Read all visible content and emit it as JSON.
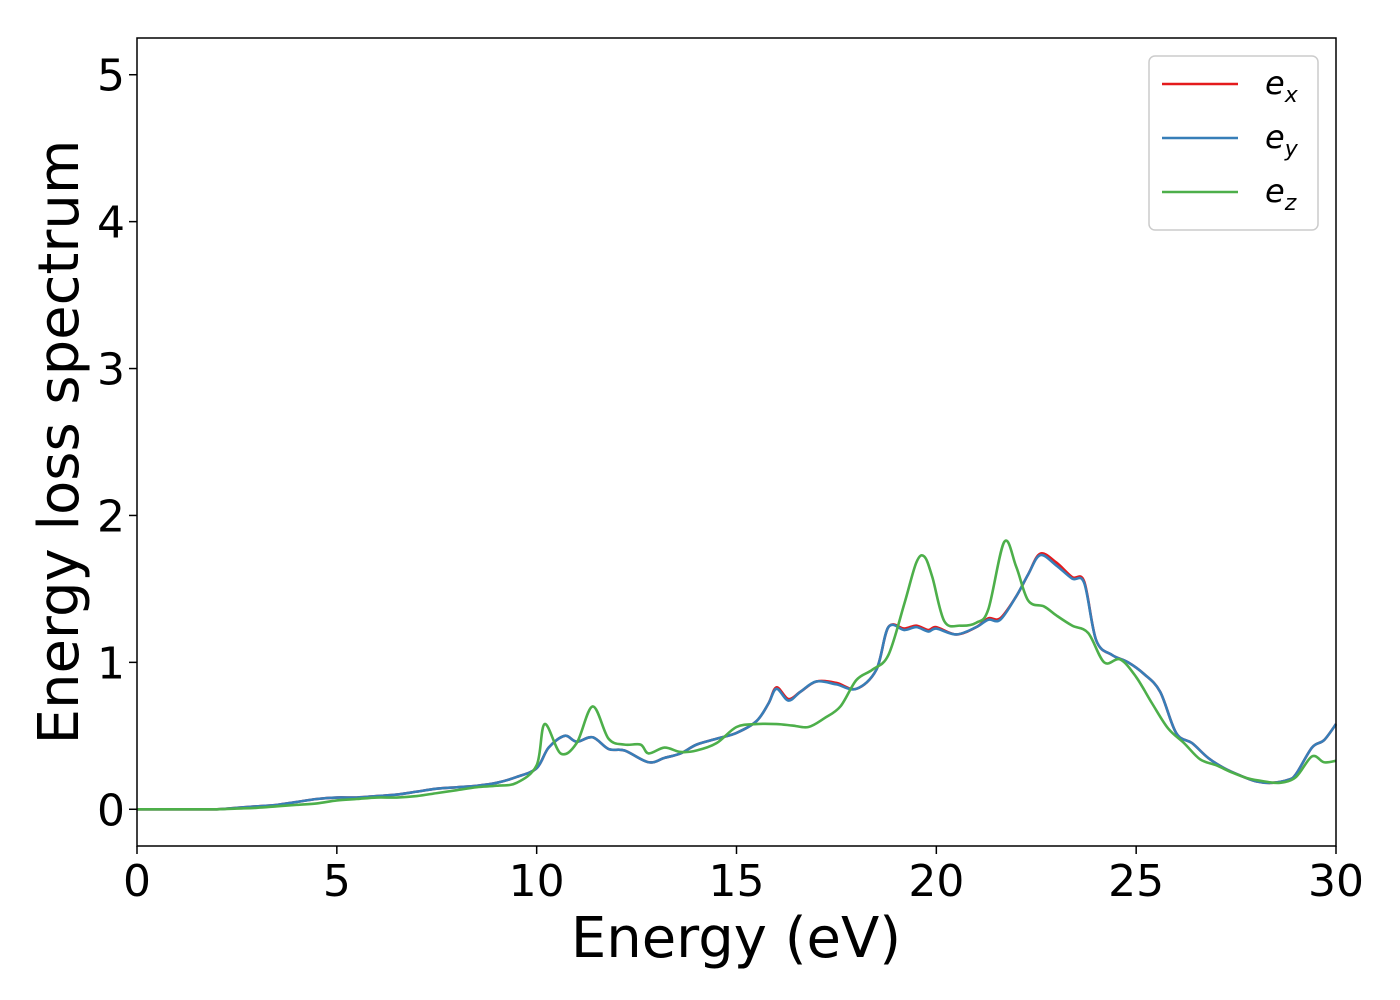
{
  "chart_data": {
    "type": "line",
    "title": "",
    "xlabel": "Energy (eV)",
    "ylabel": "Energy loss spectrum",
    "xlim": [
      0,
      30
    ],
    "ylim": [
      -0.25,
      5.25
    ],
    "xticks": [
      0,
      5,
      10,
      15,
      20,
      25,
      30
    ],
    "yticks": [
      0,
      1,
      2,
      3,
      4,
      5
    ],
    "grid": false,
    "legend_position": "top-right",
    "series": [
      {
        "name": "e_x",
        "label_main": "e",
        "label_sub": "x",
        "color": "#e41a1c",
        "x": [
          0,
          1,
          2,
          2.5,
          3,
          3.5,
          4,
          4.5,
          5,
          5.5,
          6,
          6.5,
          7,
          7.5,
          8,
          8.5,
          9,
          9.5,
          10,
          10.3,
          10.7,
          11,
          11.4,
          11.8,
          12.2,
          12.8,
          13.2,
          13.6,
          14,
          14.5,
          15,
          15.5,
          15.8,
          16,
          16.3,
          16.6,
          17,
          17.5,
          18,
          18.5,
          18.8,
          19.2,
          19.5,
          19.8,
          20,
          20.5,
          21,
          21.3,
          21.6,
          22,
          22.3,
          22.6,
          23,
          23.4,
          23.7,
          24,
          24.4,
          24.8,
          25.2,
          25.6,
          26,
          26.4,
          26.8,
          27.2,
          27.6,
          28,
          28.4,
          28.8,
          29,
          29.4,
          29.7,
          30
        ],
        "y": [
          0,
          0,
          0,
          0.01,
          0.02,
          0.03,
          0.05,
          0.07,
          0.08,
          0.08,
          0.09,
          0.1,
          0.12,
          0.14,
          0.15,
          0.16,
          0.18,
          0.22,
          0.28,
          0.42,
          0.5,
          0.46,
          0.49,
          0.41,
          0.4,
          0.32,
          0.35,
          0.38,
          0.44,
          0.48,
          0.52,
          0.6,
          0.72,
          0.83,
          0.75,
          0.8,
          0.87,
          0.86,
          0.82,
          0.95,
          1.24,
          1.23,
          1.25,
          1.22,
          1.24,
          1.19,
          1.24,
          1.3,
          1.3,
          1.45,
          1.6,
          1.74,
          1.68,
          1.58,
          1.55,
          1.15,
          1.05,
          1.0,
          0.92,
          0.8,
          0.52,
          0.45,
          0.35,
          0.28,
          0.23,
          0.19,
          0.18,
          0.2,
          0.24,
          0.42,
          0.47,
          0.58
        ]
      },
      {
        "name": "e_y",
        "label_main": "e",
        "label_sub": "y",
        "color": "#377eb8",
        "x": [
          0,
          1,
          2,
          2.5,
          3,
          3.5,
          4,
          4.5,
          5,
          5.5,
          6,
          6.5,
          7,
          7.5,
          8,
          8.5,
          9,
          9.5,
          10,
          10.3,
          10.7,
          11,
          11.4,
          11.8,
          12.2,
          12.8,
          13.2,
          13.6,
          14,
          14.5,
          15,
          15.5,
          15.8,
          16,
          16.3,
          16.6,
          17,
          17.5,
          18,
          18.5,
          18.8,
          19.2,
          19.5,
          19.8,
          20,
          20.5,
          21,
          21.3,
          21.6,
          22,
          22.3,
          22.6,
          23,
          23.4,
          23.7,
          24,
          24.4,
          24.8,
          25.2,
          25.6,
          26,
          26.4,
          26.8,
          27.2,
          27.6,
          28,
          28.4,
          28.8,
          29,
          29.4,
          29.7,
          30
        ],
        "y": [
          0,
          0,
          0,
          0.01,
          0.02,
          0.03,
          0.05,
          0.07,
          0.08,
          0.08,
          0.09,
          0.1,
          0.12,
          0.14,
          0.15,
          0.16,
          0.18,
          0.22,
          0.28,
          0.42,
          0.5,
          0.46,
          0.49,
          0.41,
          0.4,
          0.32,
          0.35,
          0.38,
          0.44,
          0.48,
          0.52,
          0.6,
          0.72,
          0.82,
          0.74,
          0.8,
          0.87,
          0.85,
          0.82,
          0.95,
          1.24,
          1.22,
          1.24,
          1.21,
          1.23,
          1.19,
          1.24,
          1.29,
          1.29,
          1.45,
          1.6,
          1.73,
          1.66,
          1.57,
          1.54,
          1.15,
          1.05,
          1.0,
          0.92,
          0.8,
          0.52,
          0.45,
          0.35,
          0.28,
          0.23,
          0.19,
          0.18,
          0.2,
          0.24,
          0.42,
          0.47,
          0.58
        ]
      },
      {
        "name": "e_z",
        "label_main": "e",
        "label_sub": "z",
        "color": "#4daf4a",
        "x": [
          0,
          1,
          2,
          2.5,
          3,
          3.5,
          4,
          4.5,
          5,
          5.5,
          6,
          6.5,
          7,
          7.5,
          8,
          8.5,
          9,
          9.5,
          10,
          10.2,
          10.6,
          11,
          11.4,
          11.8,
          12.2,
          12.6,
          12.8,
          13.2,
          13.6,
          14,
          14.5,
          15,
          15.5,
          16,
          16.4,
          16.8,
          17.2,
          17.6,
          18,
          18.4,
          18.8,
          19.2,
          19.5,
          19.7,
          19.9,
          20.2,
          20.6,
          21,
          21.3,
          21.7,
          22,
          22.3,
          22.7,
          23,
          23.4,
          23.8,
          24.2,
          24.6,
          25,
          25.4,
          25.8,
          26.2,
          26.6,
          27,
          27.4,
          27.8,
          28.2,
          28.6,
          29,
          29.4,
          29.7,
          30
        ],
        "y": [
          0,
          0,
          0,
          0.005,
          0.01,
          0.02,
          0.03,
          0.04,
          0.06,
          0.07,
          0.08,
          0.08,
          0.09,
          0.11,
          0.13,
          0.15,
          0.16,
          0.18,
          0.3,
          0.58,
          0.38,
          0.45,
          0.7,
          0.48,
          0.44,
          0.44,
          0.38,
          0.42,
          0.39,
          0.4,
          0.45,
          0.56,
          0.58,
          0.58,
          0.57,
          0.56,
          0.62,
          0.7,
          0.88,
          0.95,
          1.05,
          1.4,
          1.68,
          1.72,
          1.58,
          1.28,
          1.25,
          1.27,
          1.36,
          1.82,
          1.65,
          1.42,
          1.38,
          1.32,
          1.25,
          1.2,
          1.0,
          1.02,
          0.9,
          0.72,
          0.55,
          0.45,
          0.34,
          0.3,
          0.25,
          0.21,
          0.19,
          0.18,
          0.22,
          0.36,
          0.32,
          0.33
        ]
      }
    ]
  }
}
